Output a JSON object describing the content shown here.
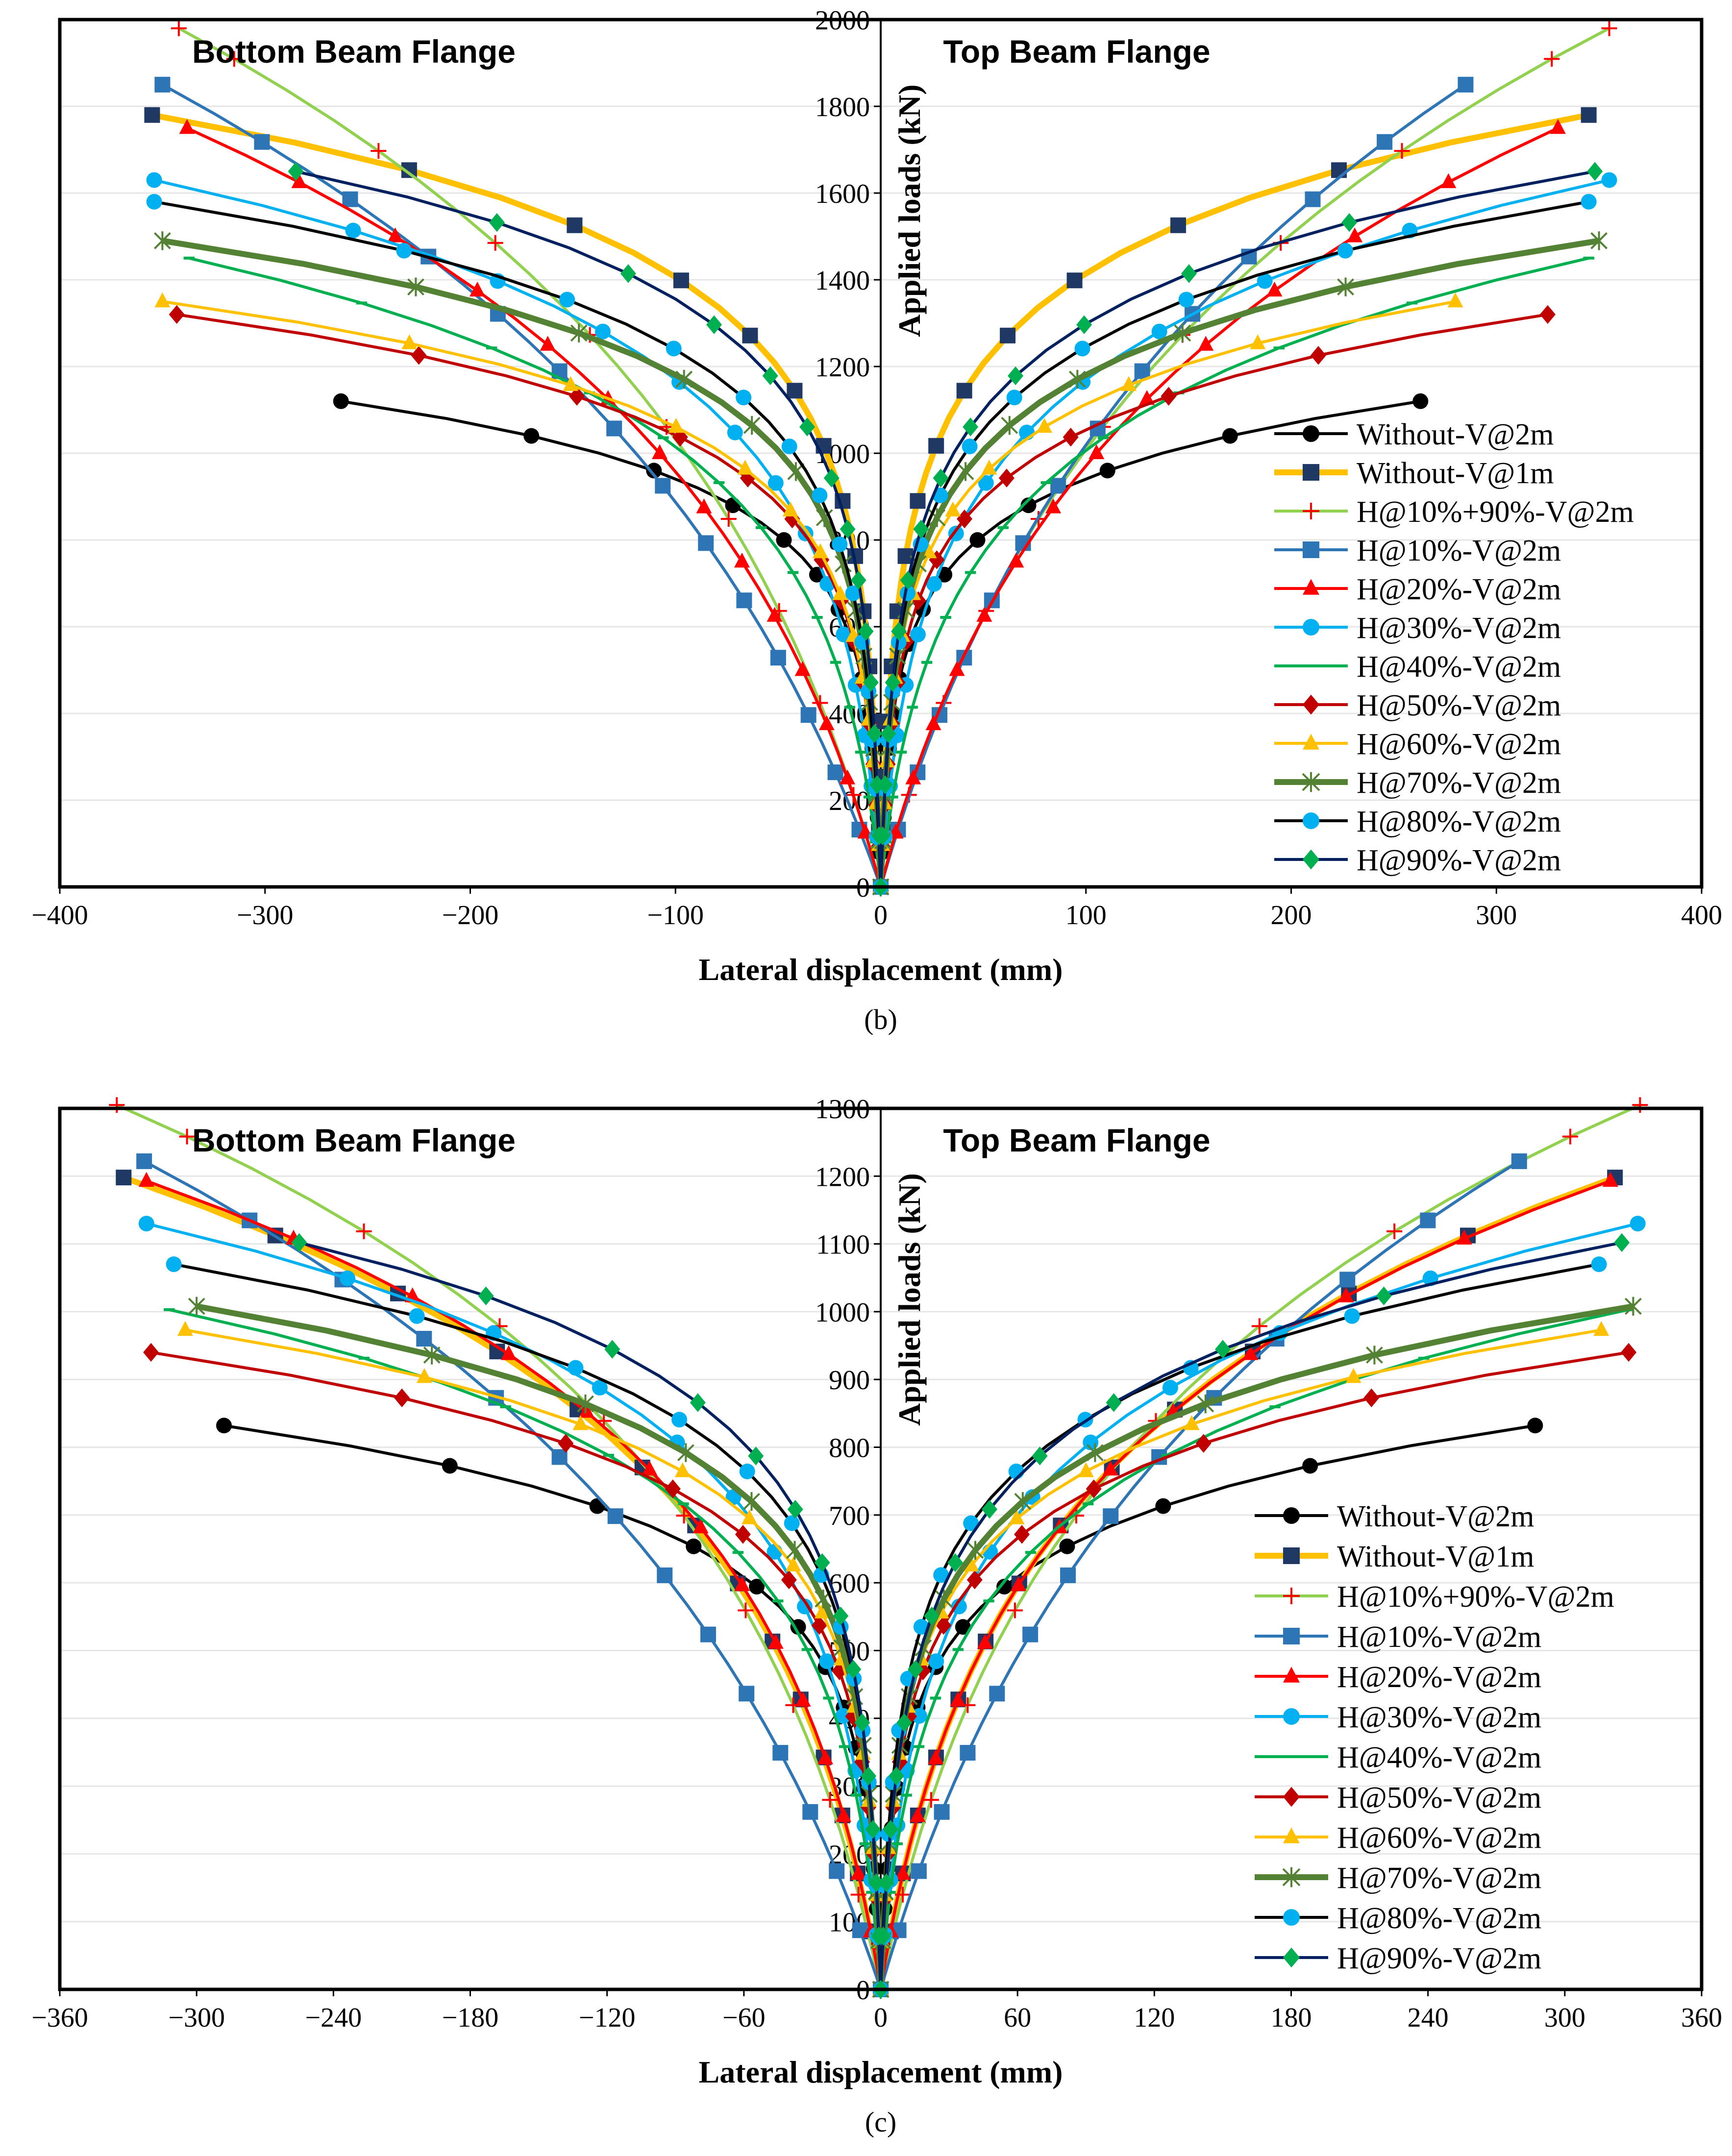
{
  "series_styles": [
    {
      "name": "Without-V@2m",
      "color": "#000000",
      "marker": "circle",
      "line_width": 6
    },
    {
      "name": "Without-V@1m",
      "color": "#FFC000",
      "marker_color": "#1F3864",
      "marker": "square",
      "line_width": 12
    },
    {
      "name": "H@10%+90%-V@2m",
      "color": "#92D050",
      "marker_color": "#FF0000",
      "marker": "plus",
      "line_width": 6
    },
    {
      "name": "H@10%-V@2m",
      "color": "#2E75B6",
      "marker": "square",
      "line_width": 6
    },
    {
      "name": "H@20%-V@2m",
      "color": "#FF0000",
      "marker": "triangle",
      "line_width": 6
    },
    {
      "name": "H@30%-V@2m",
      "color": "#00B0F0",
      "marker": "circle",
      "line_width": 6
    },
    {
      "name": "H@40%-V@2m",
      "color": "#00B050",
      "marker": "dash",
      "line_width": 6
    },
    {
      "name": "H@50%-V@2m",
      "color": "#C00000",
      "marker": "diamond",
      "line_width": 6
    },
    {
      "name": "H@60%-V@2m",
      "color": "#FFC000",
      "marker": "triangle",
      "line_width": 6
    },
    {
      "name": "H@70%-V@2m",
      "color": "#548235",
      "marker": "star",
      "line_width": 12
    },
    {
      "name": "H@80%-V@2m",
      "color": "#000000",
      "marker_color": "#00B0F0",
      "marker": "circle",
      "line_width": 6
    },
    {
      "name": "H@90%-V@2m",
      "color": "#002060",
      "marker_color": "#00B050",
      "marker": "diamond",
      "line_width": 6
    }
  ],
  "chart_data": [
    {
      "id": "b",
      "type": "line",
      "caption": "(b)",
      "xlabel": "Lateral displacement (mm)",
      "ylabel": "Applied loads (kN)",
      "xlim": [
        -400,
        400
      ],
      "ylim": [
        0,
        2000
      ],
      "xticks": [
        -400,
        -300,
        -200,
        -100,
        0,
        100,
        200,
        300,
        400
      ],
      "yticks": [
        0,
        200,
        400,
        600,
        800,
        1000,
        1200,
        1400,
        1600,
        1800,
        2000
      ],
      "left_label": "Bottom Beam Flange",
      "right_label": "Top Beam Flange",
      "legend_position": "lower-right",
      "grid": true,
      "series": [
        {
          "name": "Without-V@2m",
          "peak": 1120,
          "top_disp": 263,
          "bottom_disp": -263,
          "stiffness": 0.62
        },
        {
          "name": "Without-V@1m",
          "peak": 1780,
          "top_disp": 345,
          "bottom_disp": -355,
          "stiffness": 0.62
        },
        {
          "name": "H@10%+90%-V@2m",
          "peak": 1980,
          "top_disp": 355,
          "bottom_disp": -342,
          "stiffness": 0.2
        },
        {
          "name": "H@10%-V@2m",
          "peak": 1850,
          "top_disp": 285,
          "bottom_disp": -350,
          "stiffness": 0.17
        },
        {
          "name": "H@20%-V@2m",
          "peak": 1750,
          "top_disp": 330,
          "bottom_disp": -338,
          "stiffness": 0.22
        },
        {
          "name": "H@30%-V@2m",
          "peak": 1630,
          "top_disp": 355,
          "bottom_disp": -354,
          "stiffness": 0.45
        },
        {
          "name": "H@40%-V@2m",
          "peak": 1450,
          "top_disp": 345,
          "bottom_disp": -337,
          "stiffness": 0.4
        },
        {
          "name": "H@50%-V@2m",
          "peak": 1320,
          "top_disp": 325,
          "bottom_disp": -343,
          "stiffness": 0.6
        },
        {
          "name": "H@60%-V@2m",
          "peak": 1350,
          "top_disp": 280,
          "bottom_disp": -350,
          "stiffness": 0.6
        },
        {
          "name": "H@70%-V@2m",
          "peak": 1490,
          "top_disp": 350,
          "bottom_disp": -350,
          "stiffness": 0.62
        },
        {
          "name": "H@80%-V@2m",
          "peak": 1580,
          "top_disp": 345,
          "bottom_disp": -354,
          "stiffness": 0.6
        },
        {
          "name": "H@90%-V@2m",
          "peak": 1650,
          "top_disp": 348,
          "bottom_disp": -285,
          "stiffness": 0.6
        }
      ]
    },
    {
      "id": "c",
      "type": "line",
      "caption": "(c)",
      "xlabel": "Lateral displacement (mm)",
      "ylabel": "Applied loads (kN)",
      "xlim": [
        -360,
        360
      ],
      "ylim": [
        0,
        1300
      ],
      "xticks": [
        -360,
        -300,
        -240,
        -180,
        -120,
        -60,
        0,
        60,
        120,
        180,
        240,
        300,
        360
      ],
      "yticks": [
        0,
        100,
        200,
        300,
        400,
        500,
        600,
        700,
        800,
        900,
        1000,
        1100,
        1200,
        1300
      ],
      "left_label": "Bottom Beam Flange",
      "right_label": "Top Beam Flange",
      "legend_position": "lower-right",
      "grid": true,
      "series": [
        {
          "name": "Without-V@2m",
          "peak": 832,
          "top_disp": 287,
          "bottom_disp": -288,
          "stiffness": 0.6
        },
        {
          "name": "Without-V@1m",
          "peak": 1198,
          "top_disp": 322,
          "bottom_disp": -332,
          "stiffness": 0.3
        },
        {
          "name": "H@10%+90%-V@2m",
          "peak": 1305,
          "top_disp": 333,
          "bottom_disp": -335,
          "stiffness": 0.25
        },
        {
          "name": "H@10%-V@2m",
          "peak": 1222,
          "top_disp": 280,
          "bottom_disp": -323,
          "stiffness": 0.18
        },
        {
          "name": "H@20%-V@2m",
          "peak": 1193,
          "top_disp": 320,
          "bottom_disp": -322,
          "stiffness": 0.3
        },
        {
          "name": "H@30%-V@2m",
          "peak": 1130,
          "top_disp": 332,
          "bottom_disp": -322,
          "stiffness": 0.45
        },
        {
          "name": "H@40%-V@2m",
          "peak": 1003,
          "top_disp": 328,
          "bottom_disp": -312,
          "stiffness": 0.45
        },
        {
          "name": "H@50%-V@2m",
          "peak": 940,
          "top_disp": 328,
          "bottom_disp": -320,
          "stiffness": 0.6
        },
        {
          "name": "H@60%-V@2m",
          "peak": 973,
          "top_disp": 316,
          "bottom_disp": -305,
          "stiffness": 0.6
        },
        {
          "name": "H@70%-V@2m",
          "peak": 1008,
          "top_disp": 330,
          "bottom_disp": -300,
          "stiffness": 0.6
        },
        {
          "name": "H@80%-V@2m",
          "peak": 1070,
          "top_disp": 315,
          "bottom_disp": -310,
          "stiffness": 0.6
        },
        {
          "name": "H@90%-V@2m",
          "peak": 1102,
          "top_disp": 325,
          "bottom_disp": -255,
          "stiffness": 0.55
        }
      ]
    }
  ]
}
